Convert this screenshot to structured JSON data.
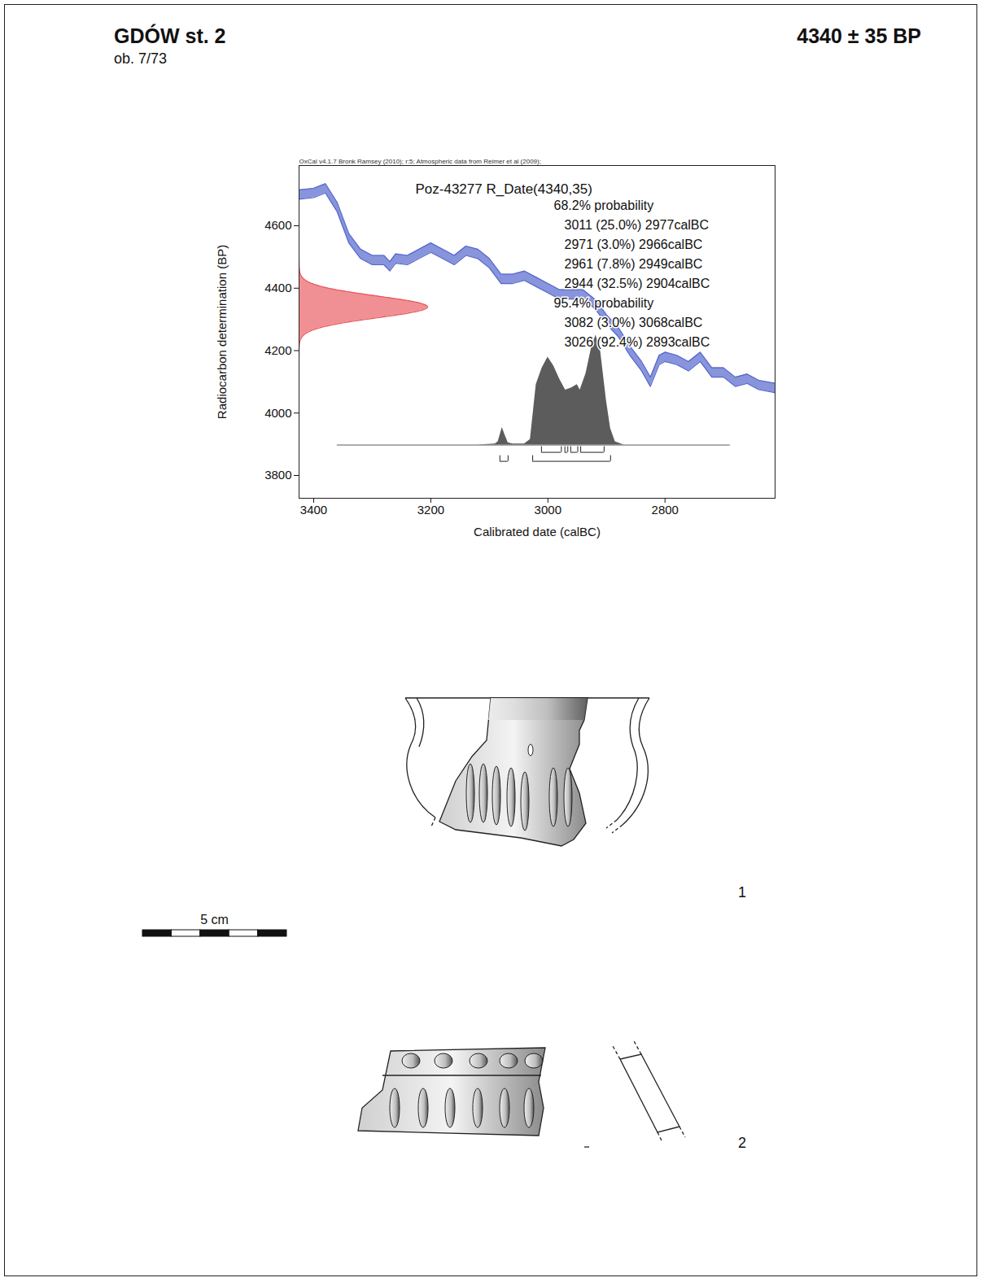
{
  "header": {
    "site": "GDÓW st. 2",
    "feature": "ob. 7/73",
    "date": "4340 ± 35 BP"
  },
  "chart_data": {
    "type": "line",
    "header_note": "OxCal v4.1.7 Bronk Ramsey (2010); r:5; Atmospheric data from Reimer et al (2009);",
    "title": "Poz-43277 R_Date(4340,35)",
    "x_label": "Calibrated date (calBC)",
    "y_label": "Radiocarbon determination (BP)",
    "xlim": [
      3425,
      2612
    ],
    "xticks": [
      3400,
      3200,
      3000,
      2800
    ],
    "ylim": [
      3727,
      4793
    ],
    "yticks": [
      3800,
      4000,
      4200,
      4400,
      4600
    ],
    "curve": {
      "color": "#5566cc",
      "x": [
        3425,
        3400,
        3380,
        3360,
        3340,
        3320,
        3300,
        3280,
        3270,
        3260,
        3240,
        3220,
        3200,
        3180,
        3160,
        3140,
        3120,
        3100,
        3080,
        3060,
        3040,
        3020,
        3000,
        2980,
        2960,
        2940,
        2920,
        2900,
        2880,
        2860,
        2840,
        2825,
        2810,
        2800,
        2780,
        2760,
        2740,
        2720,
        2700,
        2680,
        2660,
        2640,
        2612
      ],
      "values": [
        4700,
        4705,
        4720,
        4660,
        4560,
        4510,
        4490,
        4490,
        4470,
        4495,
        4490,
        4510,
        4530,
        4510,
        4490,
        4520,
        4510,
        4480,
        4430,
        4430,
        4440,
        4420,
        4400,
        4380,
        4380,
        4380,
        4350,
        4300,
        4260,
        4200,
        4150,
        4100,
        4170,
        4180,
        4170,
        4150,
        4180,
        4130,
        4130,
        4100,
        4110,
        4090,
        4080
      ],
      "errors": [
        15,
        15,
        15,
        15,
        15,
        15,
        15,
        15,
        15,
        15,
        15,
        15,
        15,
        15,
        15,
        15,
        15,
        15,
        15,
        15,
        15,
        15,
        15,
        15,
        15,
        15,
        15,
        15,
        15,
        15,
        15,
        15,
        15,
        15,
        15,
        15,
        15,
        15,
        15,
        15,
        15,
        15,
        15
      ]
    },
    "measurement": {
      "mean": 4340,
      "error": 35,
      "color": "#e8555a"
    },
    "calibrated": {
      "color": "#5c5c5c",
      "x": [
        3360,
        3120,
        3090,
        3085,
        3078,
        3074,
        3068,
        3060,
        3040,
        3030,
        3025,
        3020,
        3010,
        3000,
        2990,
        2980,
        2970,
        2960,
        2950,
        2945,
        2935,
        2925,
        2918,
        2910,
        2900,
        2893,
        2885,
        2870,
        2690
      ],
      "values": [
        0,
        0,
        0.01,
        0.03,
        0.16,
        0.1,
        0.02,
        0.01,
        0.01,
        0.05,
        0.3,
        0.55,
        0.7,
        0.8,
        0.72,
        0.6,
        0.5,
        0.52,
        0.55,
        0.5,
        0.65,
        0.9,
        1,
        0.85,
        0.4,
        0.15,
        0.03,
        0,
        0
      ]
    },
    "intervals": [
      {
        "level": 68.2,
        "label": "68.2% probability",
        "ranges": [
          {
            "from": 3011,
            "to": 2977,
            "probability": 25,
            "label": "3011 (25.0%) 2977calBC"
          },
          {
            "from": 2971,
            "to": 2966,
            "probability": 3,
            "label": "2971 (3.0%) 2966calBC"
          },
          {
            "from": 2961,
            "to": 2949,
            "probability": 7.8,
            "label": "2961 (7.8%) 2949calBC"
          },
          {
            "from": 2944,
            "to": 2904,
            "probability": 32.5,
            "label": "2944 (32.5%) 2904calBC"
          }
        ]
      },
      {
        "level": 95.4,
        "label": "95.4% probability",
        "ranges": [
          {
            "from": 3082,
            "to": 3068,
            "probability": 3,
            "label": "3082 (3.0%) 3068calBC"
          },
          {
            "from": 3026,
            "to": 2893,
            "probability": 92.4,
            "label": "3026 (92.4%) 2893calBC"
          }
        ]
      }
    ]
  },
  "drawings": {
    "items": [
      {
        "label": "1"
      },
      {
        "label": "2"
      }
    ],
    "scale_bar_label": "5 cm"
  }
}
